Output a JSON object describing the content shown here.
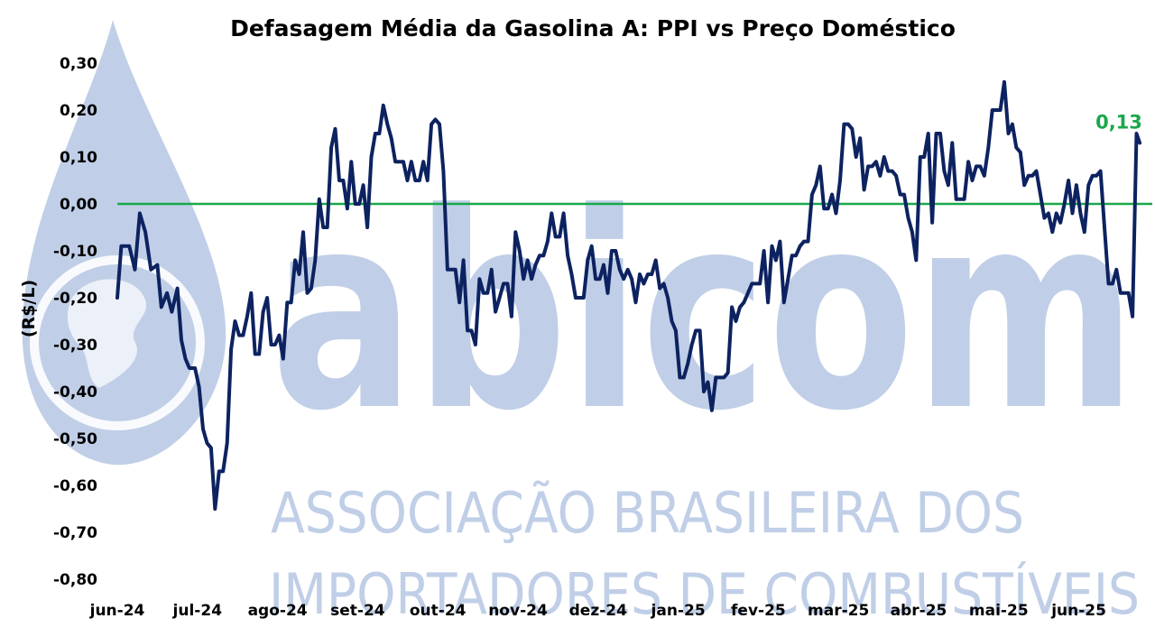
{
  "chart_data": {
    "type": "line",
    "title": "Defasagem Média da Gasolina A: PPI vs Preço Doméstico",
    "xlabel": "",
    "ylabel": "(R$/L)",
    "ylim": [
      -0.8,
      0.3
    ],
    "yticks": [
      -0.8,
      -0.7,
      -0.6,
      -0.5,
      -0.4,
      -0.3,
      -0.2,
      -0.1,
      0.0,
      0.1,
      0.2,
      0.3
    ],
    "ytick_labels": [
      "-0,80",
      "-0,70",
      "-0,60",
      "-0,50",
      "-0,40",
      "-0,30",
      "-0,20",
      "-0,10",
      "0,00",
      "0,10",
      "0,20",
      "0,30"
    ],
    "xtick_labels": [
      "jun-24",
      "jul-24",
      "ago-24",
      "set-24",
      "out-24",
      "nov-24",
      "dez-24",
      "jan-25",
      "fev-25",
      "mar-25",
      "abr-25",
      "mai-25",
      "jun-25"
    ],
    "reference_line": {
      "y": 0.0,
      "color": "#19a84a"
    },
    "last_value_label": "0,13",
    "grid": false,
    "legend": "none",
    "series": [
      {
        "line_color": "#0d2260",
        "points": [
          [
            0.0,
            -0.2
          ],
          [
            0.05,
            -0.09
          ],
          [
            0.15,
            -0.09
          ],
          [
            0.22,
            -0.14
          ],
          [
            0.28,
            -0.02
          ],
          [
            0.35,
            -0.06
          ],
          [
            0.42,
            -0.14
          ],
          [
            0.5,
            -0.13
          ],
          [
            0.55,
            -0.22
          ],
          [
            0.62,
            -0.19
          ],
          [
            0.68,
            -0.23
          ],
          [
            0.75,
            -0.18
          ],
          [
            0.8,
            -0.29
          ],
          [
            0.85,
            -0.33
          ],
          [
            0.9,
            -0.35
          ],
          [
            0.97,
            -0.35
          ],
          [
            1.02,
            -0.39
          ],
          [
            1.07,
            -0.48
          ],
          [
            1.12,
            -0.51
          ],
          [
            1.17,
            -0.52
          ],
          [
            1.22,
            -0.65
          ],
          [
            1.27,
            -0.57
          ],
          [
            1.32,
            -0.57
          ],
          [
            1.37,
            -0.51
          ],
          [
            1.42,
            -0.31
          ],
          [
            1.47,
            -0.25
          ],
          [
            1.52,
            -0.28
          ],
          [
            1.57,
            -0.28
          ],
          [
            1.62,
            -0.24
          ],
          [
            1.67,
            -0.19
          ],
          [
            1.72,
            -0.32
          ],
          [
            1.77,
            -0.32
          ],
          [
            1.82,
            -0.23
          ],
          [
            1.87,
            -0.2
          ],
          [
            1.92,
            -0.3
          ],
          [
            1.97,
            -0.3
          ],
          [
            2.02,
            -0.28
          ],
          [
            2.07,
            -0.33
          ],
          [
            2.12,
            -0.21
          ],
          [
            2.17,
            -0.21
          ],
          [
            2.22,
            -0.12
          ],
          [
            2.27,
            -0.15
          ],
          [
            2.32,
            -0.06
          ],
          [
            2.37,
            -0.19
          ],
          [
            2.42,
            -0.18
          ],
          [
            2.47,
            -0.12
          ],
          [
            2.52,
            0.01
          ],
          [
            2.57,
            -0.05
          ],
          [
            2.62,
            -0.05
          ],
          [
            2.67,
            0.12
          ],
          [
            2.72,
            0.16
          ],
          [
            2.77,
            0.05
          ],
          [
            2.82,
            0.05
          ],
          [
            2.87,
            -0.01
          ],
          [
            2.92,
            0.09
          ],
          [
            2.97,
            0.0
          ],
          [
            3.02,
            0.0
          ],
          [
            3.07,
            0.04
          ],
          [
            3.12,
            -0.05
          ],
          [
            3.17,
            0.1
          ],
          [
            3.22,
            0.15
          ],
          [
            3.27,
            0.15
          ],
          [
            3.32,
            0.21
          ],
          [
            3.37,
            0.17
          ],
          [
            3.42,
            0.14
          ],
          [
            3.47,
            0.09
          ],
          [
            3.52,
            0.09
          ],
          [
            3.57,
            0.09
          ],
          [
            3.62,
            0.05
          ],
          [
            3.67,
            0.09
          ],
          [
            3.72,
            0.05
          ],
          [
            3.77,
            0.05
          ],
          [
            3.82,
            0.09
          ],
          [
            3.87,
            0.05
          ],
          [
            3.92,
            0.17
          ],
          [
            3.97,
            0.18
          ],
          [
            4.02,
            0.17
          ],
          [
            4.07,
            0.07
          ],
          [
            4.12,
            -0.14
          ],
          [
            4.17,
            -0.14
          ],
          [
            4.22,
            -0.14
          ],
          [
            4.27,
            -0.21
          ],
          [
            4.32,
            -0.12
          ],
          [
            4.37,
            -0.27
          ],
          [
            4.42,
            -0.27
          ],
          [
            4.47,
            -0.3
          ],
          [
            4.52,
            -0.16
          ],
          [
            4.57,
            -0.19
          ],
          [
            4.62,
            -0.19
          ],
          [
            4.67,
            -0.14
          ],
          [
            4.72,
            -0.23
          ],
          [
            4.77,
            -0.2
          ],
          [
            4.82,
            -0.17
          ],
          [
            4.87,
            -0.17
          ],
          [
            4.92,
            -0.24
          ],
          [
            4.97,
            -0.06
          ],
          [
            5.02,
            -0.1
          ],
          [
            5.07,
            -0.16
          ],
          [
            5.12,
            -0.12
          ],
          [
            5.17,
            -0.16
          ],
          [
            5.22,
            -0.13
          ],
          [
            5.27,
            -0.11
          ],
          [
            5.32,
            -0.11
          ],
          [
            5.37,
            -0.08
          ],
          [
            5.42,
            -0.02
          ],
          [
            5.47,
            -0.07
          ],
          [
            5.52,
            -0.07
          ],
          [
            5.57,
            -0.02
          ],
          [
            5.62,
            -0.11
          ],
          [
            5.67,
            -0.15
          ],
          [
            5.72,
            -0.2
          ],
          [
            5.77,
            -0.2
          ],
          [
            5.82,
            -0.2
          ],
          [
            5.87,
            -0.12
          ],
          [
            5.92,
            -0.09
          ],
          [
            5.97,
            -0.16
          ],
          [
            6.02,
            -0.16
          ],
          [
            6.07,
            -0.13
          ],
          [
            6.12,
            -0.19
          ],
          [
            6.17,
            -0.1
          ],
          [
            6.22,
            -0.1
          ],
          [
            6.27,
            -0.14
          ],
          [
            6.32,
            -0.16
          ],
          [
            6.37,
            -0.14
          ],
          [
            6.42,
            -0.16
          ],
          [
            6.47,
            -0.21
          ],
          [
            6.52,
            -0.15
          ],
          [
            6.57,
            -0.17
          ],
          [
            6.62,
            -0.15
          ],
          [
            6.67,
            -0.15
          ],
          [
            6.72,
            -0.12
          ],
          [
            6.77,
            -0.18
          ],
          [
            6.82,
            -0.17
          ],
          [
            6.87,
            -0.2
          ],
          [
            6.92,
            -0.25
          ],
          [
            6.97,
            -0.27
          ],
          [
            7.02,
            -0.37
          ],
          [
            7.07,
            -0.37
          ],
          [
            7.12,
            -0.34
          ],
          [
            7.17,
            -0.3
          ],
          [
            7.22,
            -0.27
          ],
          [
            7.27,
            -0.27
          ],
          [
            7.32,
            -0.4
          ],
          [
            7.37,
            -0.38
          ],
          [
            7.42,
            -0.44
          ],
          [
            7.47,
            -0.37
          ],
          [
            7.52,
            -0.37
          ],
          [
            7.57,
            -0.37
          ],
          [
            7.62,
            -0.36
          ],
          [
            7.67,
            -0.22
          ],
          [
            7.72,
            -0.25
          ],
          [
            7.77,
            -0.22
          ],
          [
            7.82,
            -0.21
          ],
          [
            7.87,
            -0.19
          ],
          [
            7.92,
            -0.17
          ],
          [
            7.97,
            -0.17
          ],
          [
            8.02,
            -0.17
          ],
          [
            8.07,
            -0.1
          ],
          [
            8.12,
            -0.21
          ],
          [
            8.17,
            -0.09
          ],
          [
            8.22,
            -0.12
          ],
          [
            8.27,
            -0.08
          ],
          [
            8.32,
            -0.21
          ],
          [
            8.37,
            -0.16
          ],
          [
            8.42,
            -0.11
          ],
          [
            8.47,
            -0.11
          ],
          [
            8.52,
            -0.09
          ],
          [
            8.57,
            -0.08
          ],
          [
            8.62,
            -0.08
          ],
          [
            8.67,
            0.02
          ],
          [
            8.72,
            0.04
          ],
          [
            8.77,
            0.08
          ],
          [
            8.82,
            -0.01
          ],
          [
            8.87,
            -0.01
          ],
          [
            8.92,
            0.02
          ],
          [
            8.97,
            -0.02
          ],
          [
            9.02,
            0.05
          ],
          [
            9.07,
            0.17
          ],
          [
            9.12,
            0.17
          ],
          [
            9.17,
            0.16
          ],
          [
            9.22,
            0.1
          ],
          [
            9.27,
            0.14
          ],
          [
            9.32,
            0.03
          ],
          [
            9.37,
            0.08
          ],
          [
            9.42,
            0.08
          ],
          [
            9.47,
            0.09
          ],
          [
            9.52,
            0.06
          ],
          [
            9.57,
            0.1
          ],
          [
            9.62,
            0.07
          ],
          [
            9.67,
            0.07
          ],
          [
            9.72,
            0.06
          ],
          [
            9.77,
            0.02
          ],
          [
            9.82,
            0.02
          ],
          [
            9.87,
            -0.03
          ],
          [
            9.92,
            -0.06
          ],
          [
            9.97,
            -0.12
          ],
          [
            10.02,
            0.1
          ],
          [
            10.07,
            0.1
          ],
          [
            10.12,
            0.15
          ],
          [
            10.17,
            -0.04
          ],
          [
            10.22,
            0.15
          ],
          [
            10.27,
            0.15
          ],
          [
            10.32,
            0.07
          ],
          [
            10.37,
            0.04
          ],
          [
            10.42,
            0.13
          ],
          [
            10.47,
            0.01
          ],
          [
            10.52,
            0.01
          ],
          [
            10.57,
            0.01
          ],
          [
            10.62,
            0.09
          ],
          [
            10.67,
            0.05
          ],
          [
            10.72,
            0.08
          ],
          [
            10.77,
            0.08
          ],
          [
            10.82,
            0.06
          ],
          [
            10.87,
            0.12
          ],
          [
            10.92,
            0.2
          ],
          [
            10.97,
            0.2
          ],
          [
            11.02,
            0.2
          ],
          [
            11.07,
            0.26
          ],
          [
            11.12,
            0.15
          ],
          [
            11.17,
            0.17
          ],
          [
            11.22,
            0.12
          ],
          [
            11.27,
            0.11
          ],
          [
            11.32,
            0.04
          ],
          [
            11.37,
            0.06
          ],
          [
            11.42,
            0.06
          ],
          [
            11.47,
            0.07
          ],
          [
            11.52,
            0.02
          ],
          [
            11.57,
            -0.03
          ],
          [
            11.62,
            -0.02
          ],
          [
            11.67,
            -0.06
          ],
          [
            11.72,
            -0.02
          ],
          [
            11.77,
            -0.04
          ],
          [
            11.82,
            0.0
          ],
          [
            11.87,
            0.05
          ],
          [
            11.92,
            -0.02
          ],
          [
            11.97,
            0.04
          ],
          [
            12.02,
            -0.02
          ],
          [
            12.07,
            -0.06
          ],
          [
            12.12,
            0.04
          ],
          [
            12.17,
            0.06
          ],
          [
            12.22,
            0.06
          ],
          [
            12.27,
            0.07
          ],
          [
            12.32,
            -0.05
          ],
          [
            12.37,
            -0.17
          ],
          [
            12.42,
            -0.17
          ],
          [
            12.47,
            -0.14
          ],
          [
            12.52,
            -0.19
          ],
          [
            12.57,
            -0.19
          ],
          [
            12.62,
            -0.19
          ],
          [
            12.67,
            -0.24
          ],
          [
            12.72,
            0.15
          ],
          [
            12.76,
            0.13
          ]
        ]
      }
    ]
  },
  "watermark": {
    "brand": "abicom",
    "line1": "ASSOCIAÇÃO BRASILEIRA DOS",
    "line2": "IMPORTADORES DE COMBUSTÍVEIS",
    "color": "#b5c7e3"
  },
  "colors": {
    "series": "#0d2260",
    "zero_line": "#19a84a",
    "last_label": "#19a84a"
  }
}
